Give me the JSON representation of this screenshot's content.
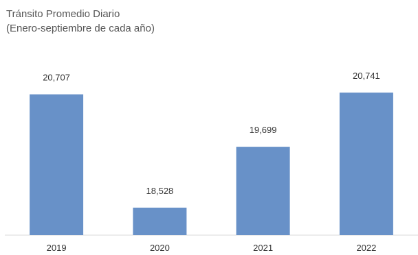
{
  "chart_data": {
    "type": "bar",
    "title": "Tránsito Promedio Diario",
    "subtitle": "(Enero-septiembre de cada año)",
    "categories": [
      "2019",
      "2020",
      "2021",
      "2022"
    ],
    "values": [
      20707,
      18528,
      19699,
      20741
    ],
    "value_labels": [
      "20,707",
      "18,528",
      "19,699",
      "20,741"
    ],
    "ylim": [
      18000,
      20900
    ],
    "bar_color": "#6891c8",
    "grid": false,
    "legend": "none"
  }
}
